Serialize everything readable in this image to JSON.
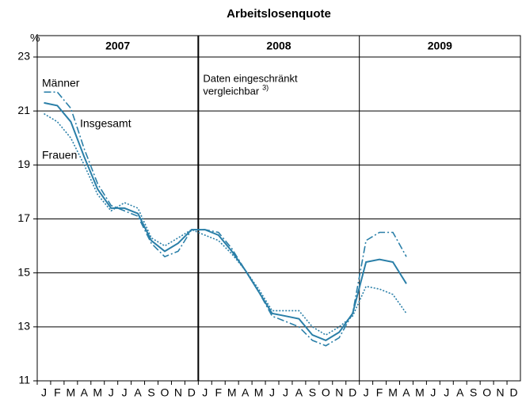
{
  "chart_data": {
    "type": "line",
    "title": "Arbeitslosenquote",
    "y_unit": "%",
    "year_labels": [
      "2007",
      "2008",
      "2009"
    ],
    "categories": [
      "J",
      "F",
      "M",
      "A",
      "M",
      "J",
      "J",
      "A",
      "S",
      "O",
      "N",
      "D",
      "J",
      "F",
      "M",
      "A",
      "M",
      "J",
      "J",
      "A",
      "S",
      "O",
      "N",
      "D",
      "J",
      "F",
      "M",
      "A",
      "M",
      "J",
      "J",
      "A",
      "S",
      "O",
      "N",
      "D"
    ],
    "ylim": [
      11,
      23
    ],
    "yticks": [
      11,
      13,
      15,
      17,
      19,
      21,
      23
    ],
    "grid": true,
    "annotation": [
      "Daten eingeschränkt",
      "vergleichbar"
    ],
    "annotation_note": "3)",
    "series": [
      {
        "name": "Männer",
        "color": "#2a7fa8",
        "style": "dashdot",
        "values": [
          21.7,
          21.7,
          21.1,
          19.6,
          18.3,
          17.5,
          17.3,
          17.1,
          16.1,
          15.6,
          15.8,
          16.6,
          16.6,
          16.5,
          15.9,
          15.1,
          14.3,
          13.4,
          13.2,
          13.0,
          12.5,
          12.3,
          12.6,
          13.5,
          16.2,
          16.5,
          16.5,
          15.6,
          null,
          null,
          null,
          null,
          null,
          null,
          null,
          null
        ]
      },
      {
        "name": "Insgesamt",
        "color": "#2a7fa8",
        "style": "solid",
        "values": [
          21.3,
          21.2,
          20.6,
          19.3,
          18.1,
          17.4,
          17.4,
          17.2,
          16.2,
          15.8,
          16.1,
          16.6,
          16.6,
          16.4,
          15.8,
          15.1,
          14.3,
          13.5,
          13.4,
          13.3,
          12.7,
          12.5,
          12.8,
          13.5,
          15.4,
          15.5,
          15.4,
          14.6,
          null,
          null,
          null,
          null,
          null,
          null,
          null,
          null
        ]
      },
      {
        "name": "Frauen",
        "color": "#2a7fa8",
        "style": "dotted",
        "values": [
          20.9,
          20.6,
          20.0,
          19.0,
          17.9,
          17.3,
          17.6,
          17.4,
          16.3,
          16.0,
          16.3,
          16.6,
          16.4,
          16.2,
          15.7,
          15.1,
          14.4,
          13.6,
          13.6,
          13.6,
          13.0,
          12.7,
          13.0,
          13.4,
          14.5,
          14.4,
          14.2,
          13.5,
          null,
          null,
          null,
          null,
          null,
          null,
          null,
          null
        ]
      }
    ]
  }
}
